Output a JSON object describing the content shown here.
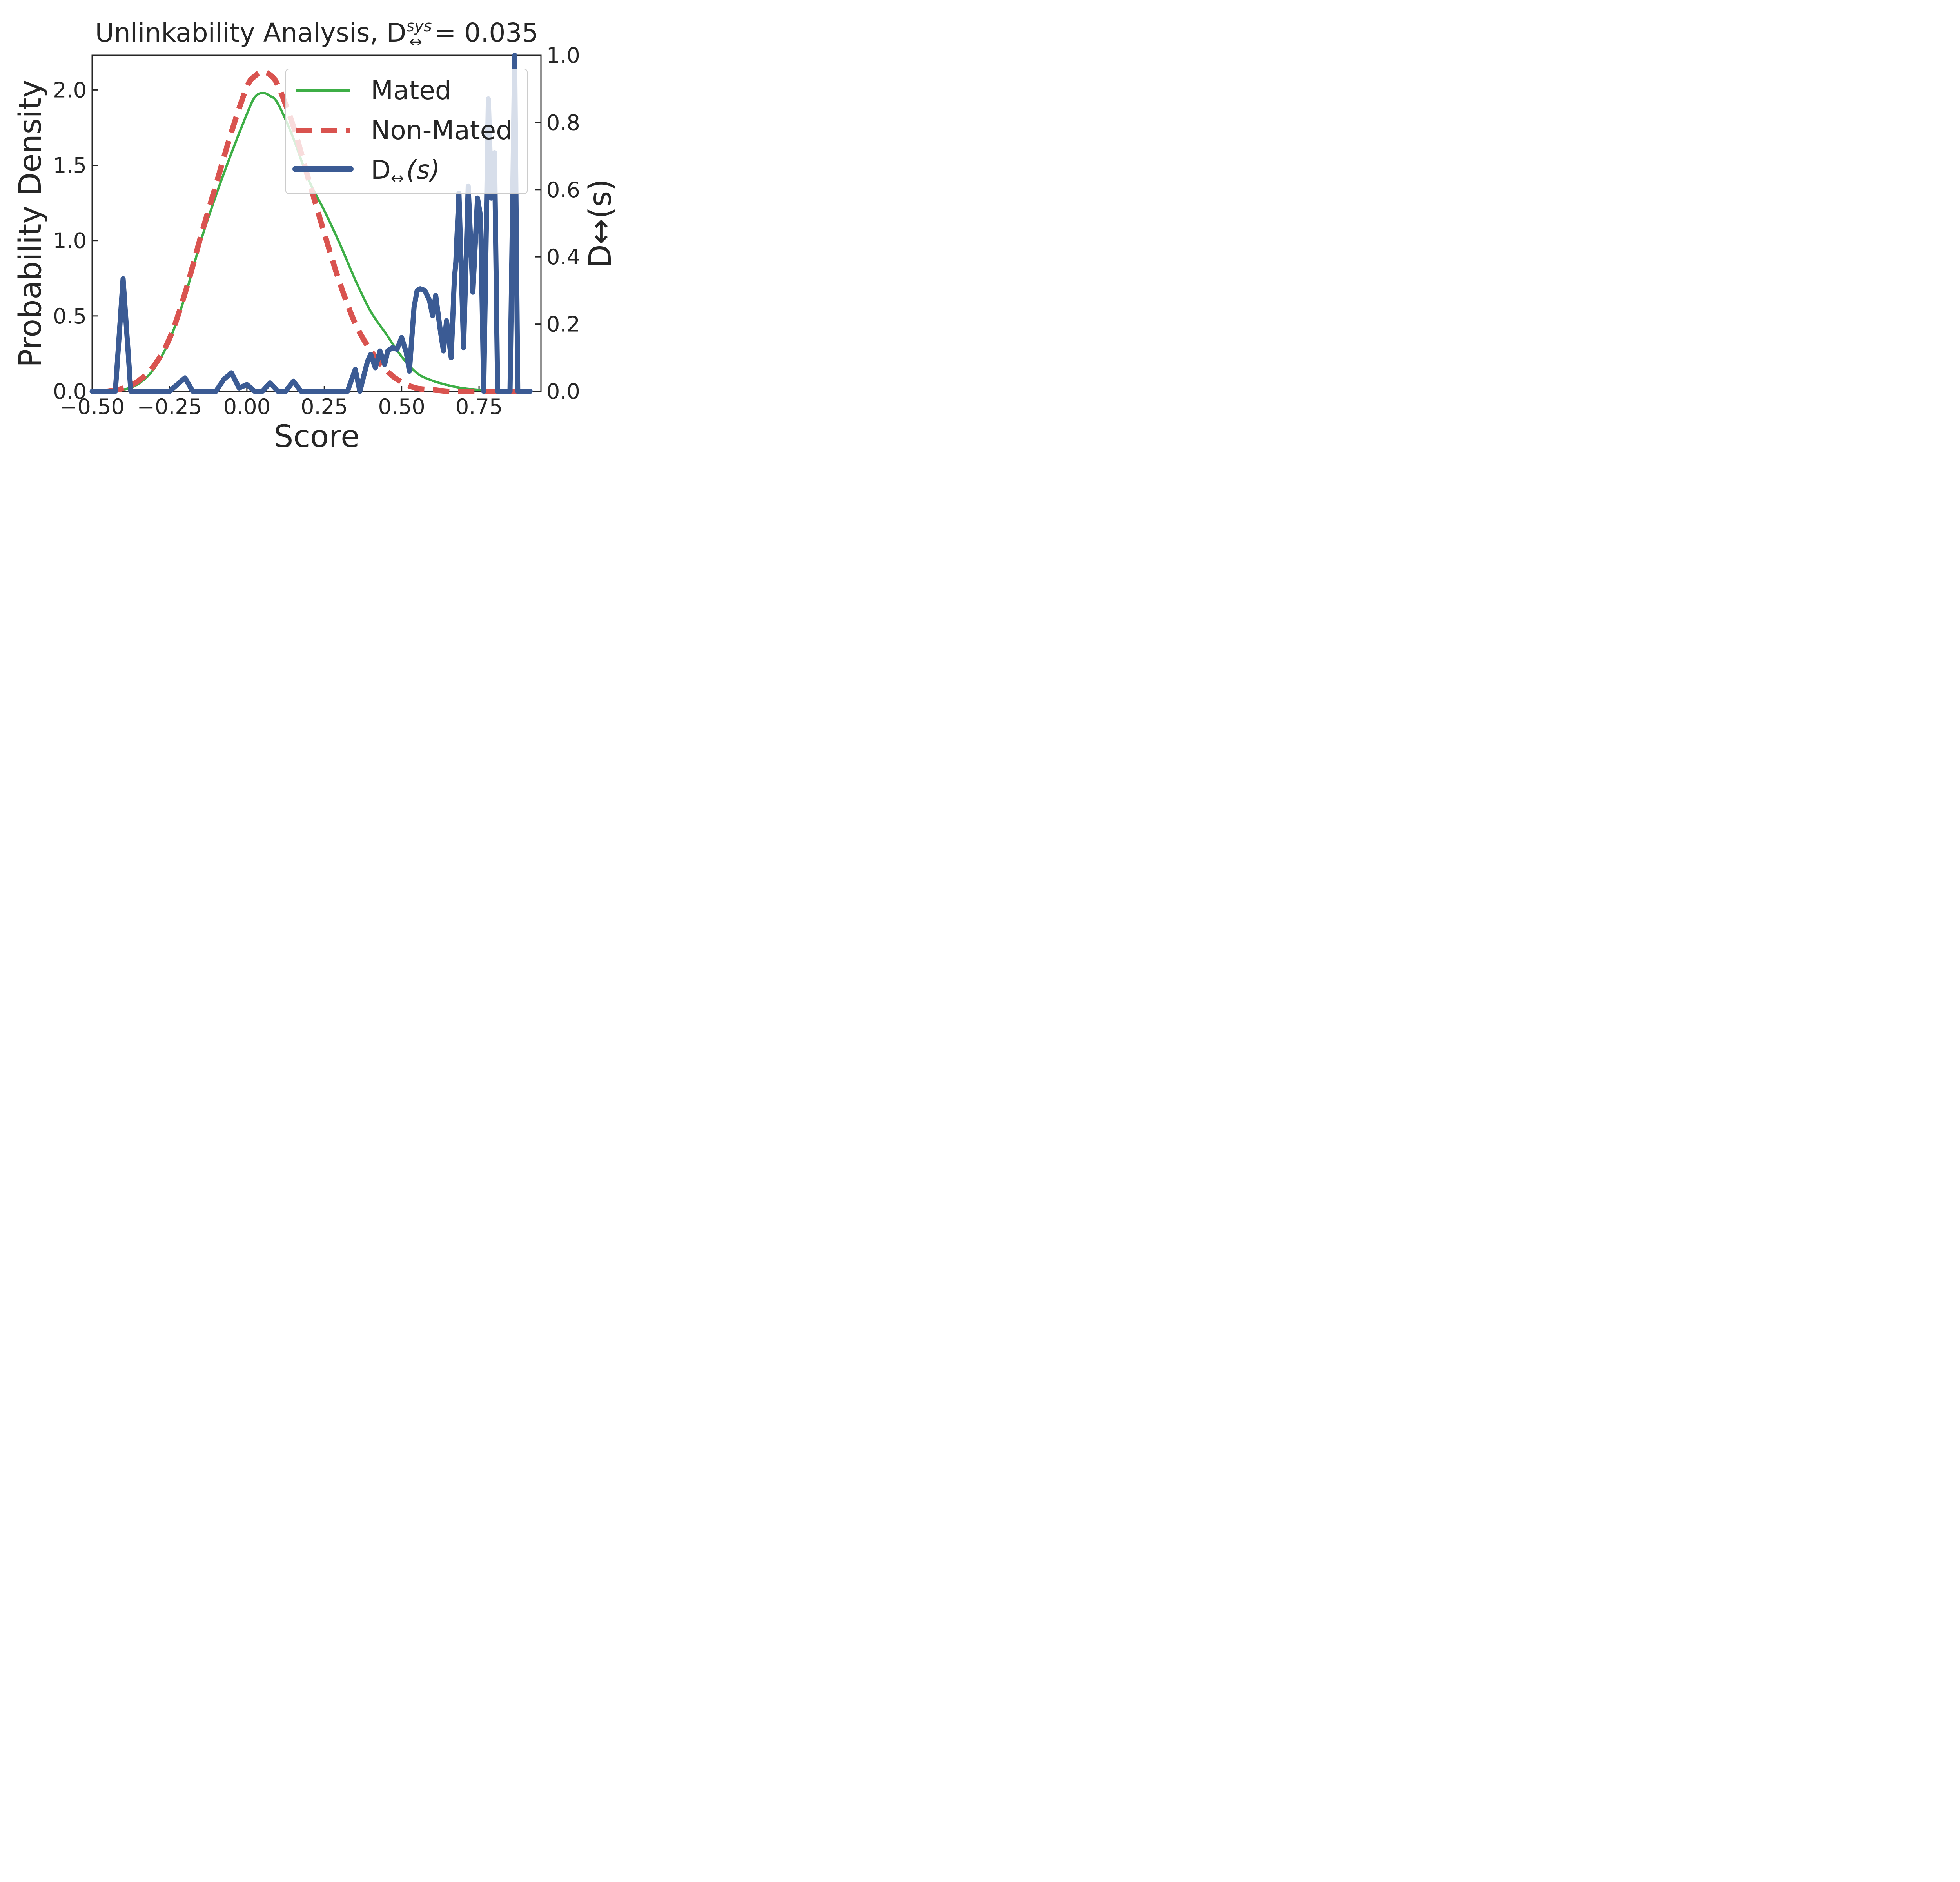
{
  "chart_data": {
    "type": "line",
    "title_prefix": "Unlinkability Analysis, D",
    "title_sup": "sys",
    "title_sub": "↔",
    "title_suffix": " = 0.035",
    "xlabel": "Score",
    "ylabel": "Probability Density",
    "y2label": "D↔(s)",
    "xlim": [
      -0.5,
      0.95
    ],
    "ylim": [
      0,
      2.23
    ],
    "y2lim": [
      0,
      1.0
    ],
    "xticks": [
      "−0.50",
      "−0.25",
      "0.00",
      "0.25",
      "0.50",
      "0.75"
    ],
    "xtick_values": [
      -0.5,
      -0.25,
      0.0,
      0.25,
      0.5,
      0.75
    ],
    "yticks": [
      "0.0",
      "0.5",
      "1.0",
      "1.5",
      "2.0"
    ],
    "ytick_values": [
      0,
      0.5,
      1.0,
      1.5,
      2.0
    ],
    "y2ticks": [
      "0.0",
      "0.2",
      "0.4",
      "0.6",
      "0.8",
      "1.0"
    ],
    "y2tick_values": [
      0,
      0.2,
      0.4,
      0.6,
      0.8,
      1.0
    ],
    "legend": [
      {
        "label": "Mated",
        "color": "#3dae46",
        "style": "solid"
      },
      {
        "label": "Non-Mated",
        "color": "#d9534f",
        "style": "dashed"
      },
      {
        "label_main": "D",
        "label_sub": "↔",
        "label_tail": "(s)",
        "color": "#3b5b94",
        "style": "thick"
      }
    ],
    "series": [
      {
        "name": "Mated",
        "color": "#3dae46",
        "axis": "left",
        "x": [
          -0.44,
          -0.4,
          -0.35,
          -0.3,
          -0.25,
          -0.2,
          -0.15,
          -0.1,
          -0.05,
          0.0,
          0.025,
          0.05,
          0.075,
          0.1,
          0.15,
          0.2,
          0.25,
          0.3,
          0.35,
          0.4,
          0.45,
          0.5,
          0.55,
          0.6,
          0.65,
          0.7,
          0.75,
          0.8,
          0.85,
          0.9
        ],
        "y": [
          0.0,
          0.01,
          0.05,
          0.15,
          0.34,
          0.63,
          0.99,
          1.3,
          1.58,
          1.84,
          1.95,
          1.98,
          1.96,
          1.91,
          1.68,
          1.4,
          1.2,
          0.98,
          0.74,
          0.53,
          0.38,
          0.23,
          0.12,
          0.07,
          0.04,
          0.02,
          0.01,
          0.005,
          0.0,
          0.0
        ]
      },
      {
        "name": "Non-Mated",
        "color": "#d9534f",
        "axis": "left",
        "x": [
          -0.45,
          -0.4,
          -0.35,
          -0.3,
          -0.25,
          -0.2,
          -0.15,
          -0.1,
          -0.05,
          0.0,
          0.025,
          0.05,
          0.075,
          0.1,
          0.15,
          0.2,
          0.25,
          0.3,
          0.35,
          0.4,
          0.45,
          0.5,
          0.55,
          0.6,
          0.65,
          0.7,
          0.75,
          0.8,
          0.85,
          0.9
        ],
        "y": [
          0.0,
          0.02,
          0.07,
          0.17,
          0.35,
          0.65,
          1.02,
          1.37,
          1.72,
          2.02,
          2.09,
          2.12,
          2.1,
          2.03,
          1.76,
          1.4,
          1.05,
          0.72,
          0.45,
          0.27,
          0.14,
          0.06,
          0.02,
          0.01,
          0.0,
          0.0,
          0.0,
          0.0,
          0.0,
          0.0
        ]
      },
      {
        "name": "D↔(s)",
        "color": "#3b5b94",
        "axis": "right",
        "x": [
          -0.5,
          -0.475,
          -0.425,
          -0.4,
          -0.375,
          -0.3,
          -0.275,
          -0.25,
          -0.2,
          -0.175,
          -0.15,
          -0.125,
          -0.1,
          -0.075,
          -0.05,
          -0.025,
          0.0,
          0.025,
          0.05,
          0.075,
          0.1,
          0.125,
          0.15,
          0.175,
          0.2,
          0.225,
          0.25,
          0.275,
          0.3,
          0.325,
          0.35,
          0.365,
          0.38,
          0.39,
          0.4,
          0.415,
          0.43,
          0.445,
          0.455,
          0.47,
          0.485,
          0.5,
          0.515,
          0.525,
          0.54,
          0.55,
          0.56,
          0.575,
          0.59,
          0.6,
          0.61,
          0.625,
          0.635,
          0.645,
          0.66,
          0.67,
          0.675,
          0.685,
          0.7,
          0.715,
          0.73,
          0.745,
          0.755,
          0.765,
          0.78,
          0.79,
          0.8,
          0.81,
          0.825,
          0.835,
          0.85,
          0.865,
          0.875,
          0.885,
          0.9,
          0.915
        ],
        "y": [
          0.0,
          0.0,
          0.0,
          0.335,
          0.0,
          0.0,
          0.0,
          0.0,
          0.04,
          0.0,
          0.0,
          0.0,
          0.0,
          0.035,
          0.055,
          0.01,
          0.02,
          0.0,
          0.0,
          0.025,
          0.0,
          0.0,
          0.03,
          0.0,
          0.0,
          0.0,
          0.0,
          0.0,
          0.0,
          0.0,
          0.065,
          0.0,
          0.055,
          0.09,
          0.11,
          0.07,
          0.12,
          0.08,
          0.12,
          0.13,
          0.125,
          0.16,
          0.115,
          0.06,
          0.25,
          0.3,
          0.305,
          0.3,
          0.27,
          0.225,
          0.285,
          0.18,
          0.12,
          0.21,
          0.1,
          0.33,
          0.385,
          0.59,
          0.13,
          0.61,
          0.295,
          0.575,
          0.52,
          0.0,
          0.87,
          0.575,
          0.71,
          0.0,
          0.0,
          0.0,
          0.0,
          1.0,
          0.0,
          0.0,
          0.0,
          0.0
        ]
      }
    ]
  }
}
